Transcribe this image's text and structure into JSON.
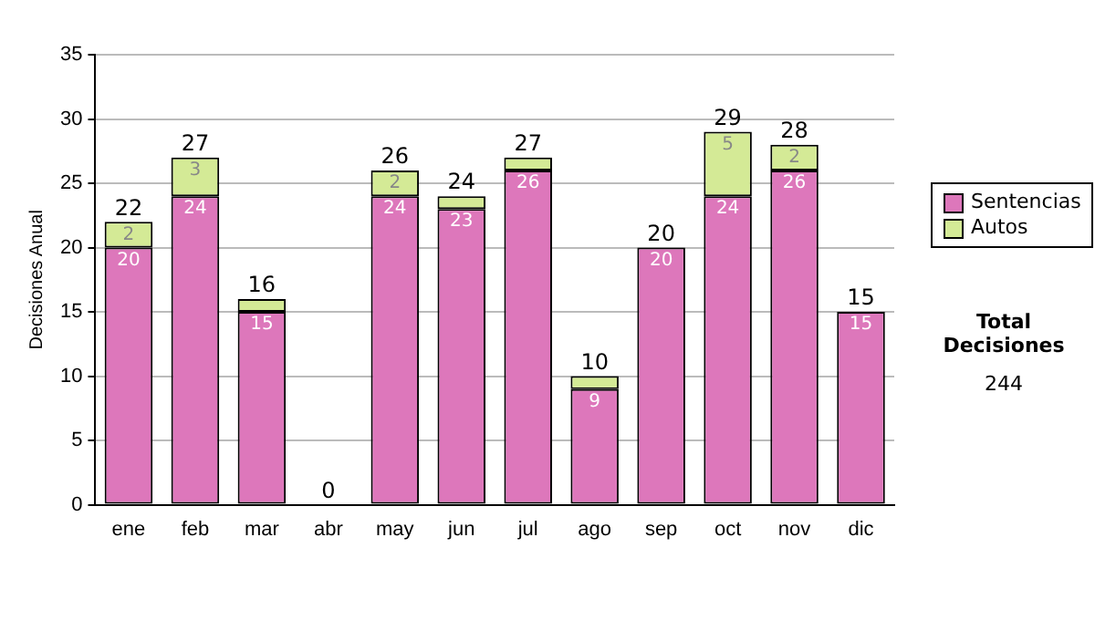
{
  "chart_data": {
    "type": "bar",
    "stacked": true,
    "ylabel": "Decisiones Anual",
    "categories": [
      "ene",
      "feb",
      "mar",
      "abr",
      "may",
      "jun",
      "jul",
      "ago",
      "sep",
      "oct",
      "nov",
      "dic"
    ],
    "series": [
      {
        "name": "Sentencias",
        "color": "#dd77bb",
        "values": [
          20,
          24,
          15,
          0,
          24,
          23,
          26,
          9,
          20,
          24,
          26,
          15
        ],
        "value_labels": [
          "20",
          "24",
          "15",
          null,
          "24",
          "23",
          "26",
          "9",
          "20",
          "24",
          "26",
          "15"
        ]
      },
      {
        "name": "Autos",
        "color": "#d4ea96",
        "values": [
          2,
          3,
          1,
          0,
          2,
          1,
          1,
          1,
          0,
          5,
          2,
          0
        ],
        "value_labels": [
          "2",
          "3",
          null,
          null,
          "2",
          null,
          null,
          null,
          null,
          "5",
          "2",
          null
        ]
      }
    ],
    "totals": [
      "22",
      "27",
      "16",
      "0",
      "26",
      "24",
      "27",
      "10",
      "20",
      "29",
      "28",
      "15"
    ],
    "ylim": [
      0,
      35
    ],
    "yticks": [
      0,
      5,
      10,
      15,
      20,
      25,
      30,
      35
    ],
    "grid": "y",
    "legend": "right",
    "annotations": [
      "Total Decisiones",
      "244"
    ]
  }
}
